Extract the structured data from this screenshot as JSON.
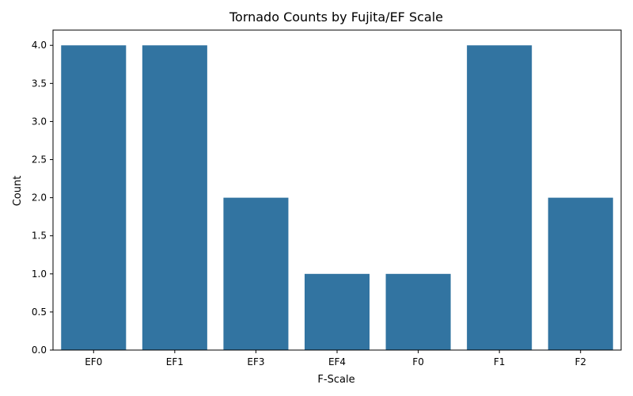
{
  "chart_data": {
    "type": "bar",
    "title": "Tornado Counts by Fujita/EF Scale",
    "xlabel": "F-Scale",
    "ylabel": "Count",
    "categories": [
      "EF0",
      "EF1",
      "EF3",
      "EF4",
      "F0",
      "F1",
      "F2"
    ],
    "values": [
      4,
      4,
      2,
      1,
      1,
      4,
      2
    ],
    "ylim": [
      0,
      4.2
    ],
    "yticks": [
      "0.0",
      "0.5",
      "1.0",
      "1.5",
      "2.0",
      "2.5",
      "3.0",
      "3.5",
      "4.0"
    ],
    "bar_color": "#3274a1",
    "grid": false,
    "legend": "none"
  }
}
